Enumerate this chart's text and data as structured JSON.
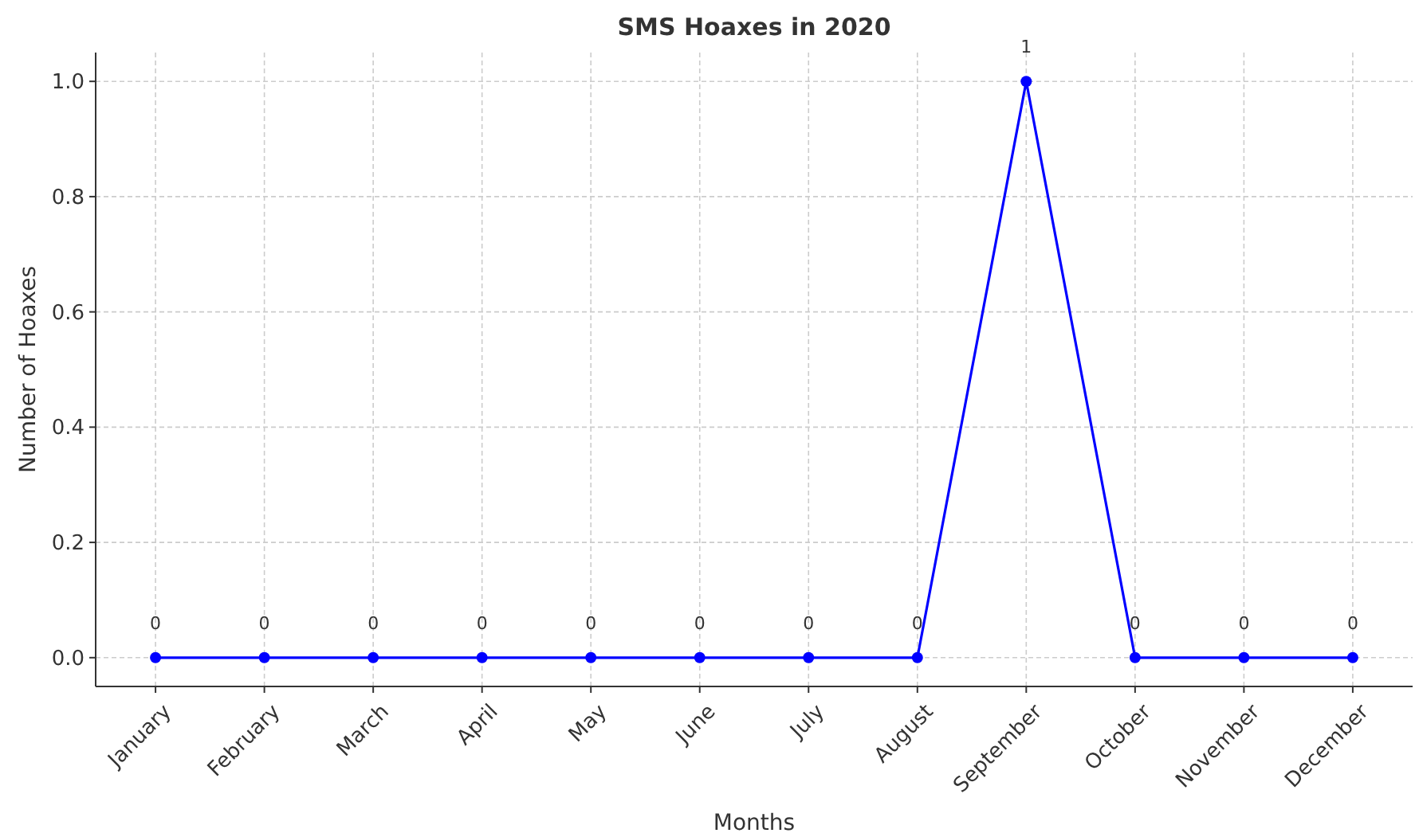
{
  "chart_data": {
    "type": "line",
    "title": "SMS Hoaxes in 2020",
    "xlabel": "Months",
    "ylabel": "Number of Hoaxes",
    "categories": [
      "January",
      "February",
      "March",
      "April",
      "May",
      "June",
      "July",
      "August",
      "September",
      "October",
      "November",
      "December"
    ],
    "series": [
      {
        "color": "#0000ff",
        "values": [
          0,
          0,
          0,
          0,
          0,
          0,
          0,
          0,
          1,
          0,
          0,
          0
        ]
      }
    ],
    "ylim": [
      -0.05,
      1.05
    ],
    "yticks": [
      {
        "value": 0,
        "label": "0.0"
      },
      {
        "value": 0.2,
        "label": "0.2"
      },
      {
        "value": 0.4,
        "label": "0.4"
      },
      {
        "value": 0.6,
        "label": "0.6"
      },
      {
        "value": 0.8,
        "label": "0.8"
      },
      {
        "value": 1,
        "label": "1.0"
      }
    ],
    "grid": true,
    "marker": "circle",
    "line_style": "solid",
    "data_labels": true
  }
}
